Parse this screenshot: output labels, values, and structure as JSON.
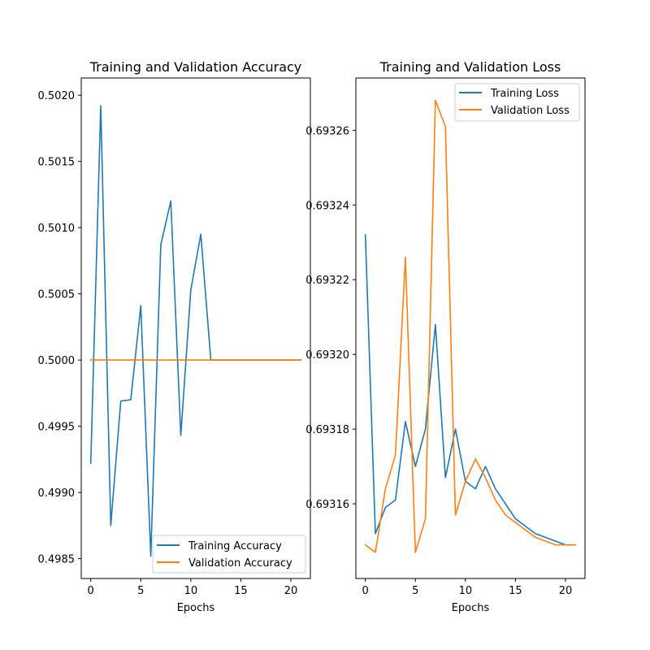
{
  "chart_data": [
    {
      "type": "line",
      "title": "Training and Validation Accuracy",
      "xlabel": "Epochs",
      "ylabel": "",
      "xlim": [
        -0.95,
        21.95
      ],
      "ylim": [
        0.49835,
        0.50213
      ],
      "xticks": [
        0,
        5,
        10,
        15,
        20
      ],
      "yticks": [
        0.4985,
        0.499,
        0.4995,
        0.5,
        0.5005,
        0.501,
        0.5015,
        0.502
      ],
      "ytick_labels": [
        "0.4985",
        "0.4990",
        "0.4995",
        "0.5000",
        "0.5005",
        "0.5010",
        "0.5015",
        "0.5020"
      ],
      "grid": false,
      "legend_position": "lower right",
      "x": [
        0,
        1,
        2,
        3,
        4,
        5,
        6,
        7,
        8,
        9,
        10,
        11,
        12,
        13,
        14,
        15,
        16,
        17,
        18,
        19,
        20,
        21
      ],
      "series": [
        {
          "name": "Training Accuracy",
          "color": "#1f77b4",
          "values": [
            0.49922,
            0.50192,
            0.49875,
            0.49969,
            0.4997,
            0.50041,
            0.49852,
            0.50087,
            0.5012,
            0.49943,
            0.50053,
            0.50095,
            0.5,
            0.5,
            0.5,
            0.5,
            0.5,
            0.5,
            0.5,
            0.5,
            0.5,
            0.5
          ]
        },
        {
          "name": "Validation Accuracy",
          "color": "#ff7f0e",
          "values": [
            0.5,
            0.5,
            0.5,
            0.5,
            0.5,
            0.5,
            0.5,
            0.5,
            0.5,
            0.5,
            0.5,
            0.5,
            0.5,
            0.5,
            0.5,
            0.5,
            0.5,
            0.5,
            0.5,
            0.5,
            0.5,
            0.5
          ]
        }
      ]
    },
    {
      "type": "line",
      "title": "Training and Validation Loss",
      "xlabel": "Epochs",
      "ylabel": "",
      "xlim": [
        -0.95,
        21.95
      ],
      "ylim": [
        0.69314,
        0.693274
      ],
      "xticks": [
        0,
        5,
        10,
        15,
        20
      ],
      "yticks": [
        0.69316,
        0.69318,
        0.6932,
        0.69322,
        0.69324,
        0.69326
      ],
      "ytick_labels": [
        "0.69316",
        "0.69318",
        "0.69320",
        "0.69322",
        "0.69324",
        "0.69326"
      ],
      "grid": false,
      "legend_position": "upper right",
      "x": [
        0,
        1,
        2,
        3,
        4,
        5,
        6,
        7,
        8,
        9,
        10,
        11,
        12,
        13,
        14,
        15,
        16,
        17,
        18,
        19,
        20,
        21
      ],
      "series": [
        {
          "name": "Training Loss",
          "color": "#1f77b4",
          "values": [
            0.693232,
            0.693152,
            0.693159,
            0.693161,
            0.693182,
            0.69317,
            0.69318,
            0.693208,
            0.693167,
            0.69318,
            0.693166,
            0.693164,
            0.69317,
            0.693164,
            0.69316,
            0.693156,
            0.693154,
            0.693152,
            0.693151,
            0.69315,
            0.693149,
            0.693149
          ]
        },
        {
          "name": "Validation Loss",
          "color": "#ff7f0e",
          "values": [
            0.693149,
            0.693147,
            0.693164,
            0.693173,
            0.693226,
            0.693147,
            0.693156,
            0.693268,
            0.693261,
            0.693157,
            0.693166,
            0.693172,
            0.693167,
            0.693161,
            0.693157,
            0.693155,
            0.693153,
            0.693151,
            0.69315,
            0.693149,
            0.693149,
            0.693149
          ]
        }
      ]
    }
  ]
}
